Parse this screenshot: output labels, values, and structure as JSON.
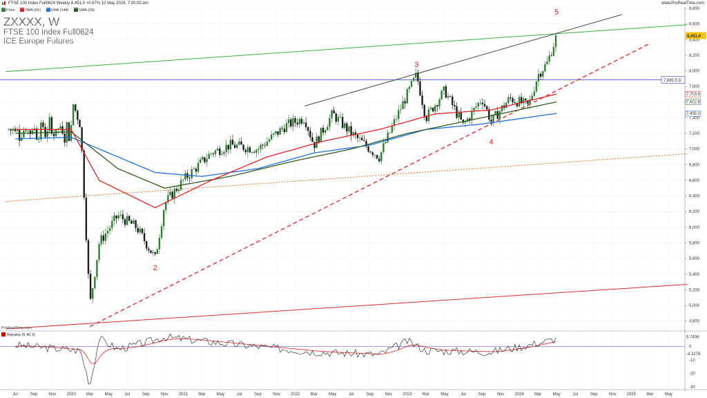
{
  "header": {
    "title": "FTSE 100 Index Full0624 Weekly 8,451.0 +0.67% 10 May 2024, 7:00:00 am",
    "site": "www.ProRealTime.com",
    "symbol": "ZXXXX, W",
    "subtitle": "FTSE 100 Index Full0624",
    "exchange": "ICE Europe Futures",
    "source": "ProRealTime.com"
  },
  "legend": [
    {
      "label": "Price",
      "color": "#2e7d32"
    },
    {
      "label": "SMA (55)",
      "color": "#e02020"
    },
    {
      "label": "SMA (144)",
      "color": "#1e6fd9"
    },
    {
      "label": "SMA (89)",
      "color": "#2f5a1e"
    }
  ],
  "indicator": {
    "legend": "Repulse (5 40 3)",
    "price_tags": [
      "5.7408",
      "-4.3278"
    ],
    "ylim": [
      -30,
      10
    ],
    "yticks": [
      "0",
      "-10",
      "-20",
      "-30"
    ]
  },
  "chart_data": {
    "type": "candlestick",
    "frequency": "weekly",
    "ylim": [
      4700,
      8800
    ],
    "yticks": [
      "8,800",
      "8,600",
      "8,400",
      "8,200",
      "8,000",
      "7,800",
      "7,600",
      "7,400",
      "7,200",
      "7,000",
      "6,800",
      "6,600",
      "6,400",
      "6,200",
      "6,000",
      "5,800",
      "5,600",
      "5,400",
      "5,200",
      "5,000",
      "4,800"
    ],
    "xticks": [
      "Jul",
      "Sep",
      "Nov",
      "2020",
      "Mar",
      "May",
      "Jul",
      "Sep",
      "Nov",
      "2021",
      "Mar",
      "May",
      "Jul",
      "Sep",
      "Nov",
      "2022",
      "Mar",
      "May",
      "Jul",
      "Sep",
      "Nov",
      "2023",
      "Mar",
      "May",
      "Jul",
      "Sep",
      "Nov",
      "2024",
      "Mar",
      "May",
      "Jul",
      "Sep",
      "Nov",
      "2025",
      "Mar",
      "May"
    ],
    "last_price": {
      "value": 8451.0,
      "label": "8,451.0"
    },
    "horizontal_level": {
      "value": 7885.5,
      "label": "7,885.5 D"
    },
    "price_tags": [
      {
        "value": 7703,
        "label": "7,703.6",
        "color": "#e02020"
      },
      {
        "value": 7602,
        "label": "7,602.6",
        "color": "#2f5a1e"
      },
      {
        "value": 7455,
        "label": "7,455.0",
        "color": "#1e6fd9"
      }
    ],
    "wave_labels": [
      {
        "label": "2",
        "x": "2020-10",
        "y": 5450
      },
      {
        "label": "3",
        "x": "2023-02",
        "y": 8050
      },
      {
        "label": "4",
        "x": "2023-10",
        "y": 7060
      },
      {
        "label": "5",
        "x": "2024-05",
        "y": 8720
      }
    ],
    "anchors": [
      {
        "date": "2020-01",
        "price": 7650
      },
      {
        "date": "2020-02",
        "price": 7300
      },
      {
        "date": "2020-03",
        "price": 5000
      },
      {
        "date": "2020-04",
        "price": 5800
      },
      {
        "date": "2020-06",
        "price": 6150
      },
      {
        "date": "2020-08",
        "price": 6000
      },
      {
        "date": "2020-10",
        "price": 5600
      },
      {
        "date": "2020-11",
        "price": 6300
      },
      {
        "date": "2021-01",
        "price": 6600
      },
      {
        "date": "2021-04",
        "price": 6950
      },
      {
        "date": "2021-06",
        "price": 7050
      },
      {
        "date": "2021-09",
        "price": 7000
      },
      {
        "date": "2021-12",
        "price": 7300
      },
      {
        "date": "2022-02",
        "price": 7400
      },
      {
        "date": "2022-03",
        "price": 7050
      },
      {
        "date": "2022-05",
        "price": 7450
      },
      {
        "date": "2022-07",
        "price": 7200
      },
      {
        "date": "2022-09",
        "price": 7000
      },
      {
        "date": "2022-10",
        "price": 6900
      },
      {
        "date": "2022-12",
        "price": 7450
      },
      {
        "date": "2023-02",
        "price": 7950
      },
      {
        "date": "2023-03",
        "price": 7400
      },
      {
        "date": "2023-05",
        "price": 7750
      },
      {
        "date": "2023-07",
        "price": 7300
      },
      {
        "date": "2023-09",
        "price": 7650
      },
      {
        "date": "2023-10",
        "price": 7350
      },
      {
        "date": "2023-12",
        "price": 7650
      },
      {
        "date": "2024-02",
        "price": 7550
      },
      {
        "date": "2024-03",
        "price": 7950
      },
      {
        "date": "2024-04",
        "price": 8100
      },
      {
        "date": "2024-05",
        "price": 8451
      }
    ],
    "sma_55": [
      {
        "date": "2019-07",
        "price": 7250
      },
      {
        "date": "2020-01",
        "price": 7250
      },
      {
        "date": "2020-04",
        "price": 6600
      },
      {
        "date": "2020-10",
        "price": 6250
      },
      {
        "date": "2021-04",
        "price": 6600
      },
      {
        "date": "2021-10",
        "price": 6900
      },
      {
        "date": "2022-04",
        "price": 7100
      },
      {
        "date": "2022-10",
        "price": 7250
      },
      {
        "date": "2023-04",
        "price": 7450
      },
      {
        "date": "2023-10",
        "price": 7500
      },
      {
        "date": "2024-05",
        "price": 7704
      }
    ],
    "sma_89": [
      {
        "date": "2019-07",
        "price": 7200
      },
      {
        "date": "2020-01",
        "price": 7220
      },
      {
        "date": "2020-06",
        "price": 6750
      },
      {
        "date": "2020-11",
        "price": 6500
      },
      {
        "date": "2021-06",
        "price": 6650
      },
      {
        "date": "2022-01",
        "price": 6850
      },
      {
        "date": "2022-07",
        "price": 7000
      },
      {
        "date": "2023-01",
        "price": 7200
      },
      {
        "date": "2023-07",
        "price": 7350
      },
      {
        "date": "2024-05",
        "price": 7603
      }
    ],
    "sma_144": [
      {
        "date": "2019-07",
        "price": 7130
      },
      {
        "date": "2020-01",
        "price": 7150
      },
      {
        "date": "2020-06",
        "price": 6900
      },
      {
        "date": "2020-10",
        "price": 6700
      },
      {
        "date": "2021-03",
        "price": 6650
      },
      {
        "date": "2021-09",
        "price": 6750
      },
      {
        "date": "2022-03",
        "price": 6950
      },
      {
        "date": "2022-09",
        "price": 7050
      },
      {
        "date": "2023-03",
        "price": 7250
      },
      {
        "date": "2023-09",
        "price": 7320
      },
      {
        "date": "2024-05",
        "price": 7456
      }
    ],
    "trendlines": [
      {
        "style": "solid",
        "color": "#3ab03a",
        "start": {
          "date": "2019-06",
          "price": 7990
        },
        "end": {
          "date": "2025-07",
          "price": 8590
        }
      },
      {
        "style": "solid",
        "color": "#444444",
        "start": {
          "date": "2022-02",
          "price": 7550
        },
        "end": {
          "date": "2024-12",
          "price": 8720
        }
      },
      {
        "style": "dashed",
        "color": "#e02020",
        "start": {
          "date": "2020-03",
          "price": 4730
        },
        "end": {
          "date": "2025-03",
          "price": 8350
        }
      },
      {
        "style": "dotted",
        "color": "#e07020",
        "start": {
          "date": "2019-06",
          "price": 6330
        },
        "end": {
          "date": "2025-07",
          "price": 6940
        }
      },
      {
        "style": "solid",
        "color": "#d03030",
        "start": {
          "date": "2019-06",
          "price": 4700
        },
        "end": {
          "date": "2025-07",
          "price": 5270
        }
      }
    ],
    "repulse_anchors": [
      {
        "date": "2019-07",
        "v": 1
      },
      {
        "date": "2020-02",
        "v": -3
      },
      {
        "date": "2020-03",
        "v": -29
      },
      {
        "date": "2020-04",
        "v": 6
      },
      {
        "date": "2020-06",
        "v": -2
      },
      {
        "date": "2020-09",
        "v": 3
      },
      {
        "date": "2020-11",
        "v": 7
      },
      {
        "date": "2021-06",
        "v": 2
      },
      {
        "date": "2022-03",
        "v": -4
      },
      {
        "date": "2022-10",
        "v": -6
      },
      {
        "date": "2023-01",
        "v": 4
      },
      {
        "date": "2023-03",
        "v": -3
      },
      {
        "date": "2023-10",
        "v": -4
      },
      {
        "date": "2024-02",
        "v": 1
      },
      {
        "date": "2024-05",
        "v": 5.74
      }
    ]
  }
}
